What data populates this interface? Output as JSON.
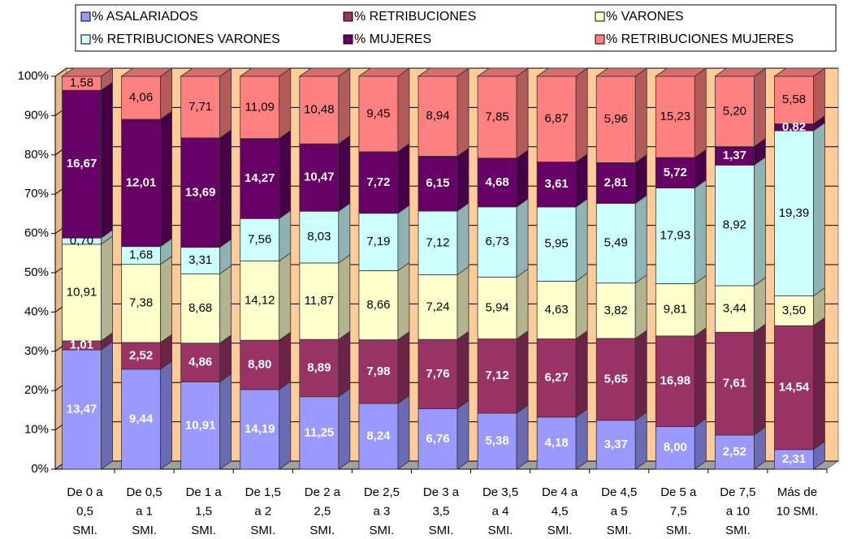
{
  "chart_data": {
    "type": "bar",
    "stacking": "percent",
    "categories": [
      [
        "De 0 a",
        "0,5",
        "SMI."
      ],
      [
        "De 0,5",
        "a 1",
        "SMI."
      ],
      [
        "De 1 a",
        "1,5",
        "SMI."
      ],
      [
        "De 1,5",
        "a 2",
        "SMI."
      ],
      [
        "De 2 a",
        "2,5",
        "SMI."
      ],
      [
        "De 2,5",
        "a 3",
        "SMI."
      ],
      [
        "De 3 a",
        "3,5",
        "SMI."
      ],
      [
        "De 3,5",
        "a 4",
        "SMI."
      ],
      [
        "De 4 a",
        "4,5",
        "SMI."
      ],
      [
        "De 4,5",
        "a 5",
        "SMI."
      ],
      [
        "De 5 a",
        "7,5",
        "SMI."
      ],
      [
        "De 7,5",
        "a 10",
        "SMI."
      ],
      [
        "Más de",
        "10 SMI."
      ]
    ],
    "series": [
      {
        "name": "% ASALARIADOS",
        "color": "#9999ff",
        "values": [
          13.47,
          9.44,
          10.91,
          14.19,
          11.25,
          8.24,
          6.76,
          5.38,
          4.18,
          3.37,
          8.0,
          2.52,
          2.31
        ],
        "value_labels": [
          "13,47",
          "9,44",
          "10,91",
          "14,19",
          "11,25",
          "8,24",
          "6,76",
          "5,38",
          "4,18",
          "3,37",
          "8,00",
          "2,52",
          "2,31"
        ]
      },
      {
        "name": "% RETRIBUCIONES",
        "color": "#993366",
        "values": [
          1.01,
          2.52,
          4.86,
          8.8,
          8.89,
          7.98,
          7.76,
          7.12,
          6.27,
          5.65,
          16.98,
          7.61,
          14.54
        ],
        "value_labels": [
          "1,01",
          "2,52",
          "4,86",
          "8,80",
          "8,89",
          "7,98",
          "7,76",
          "7,12",
          "6,27",
          "5,65",
          "16,98",
          "7,61",
          "14,54"
        ]
      },
      {
        "name": "% VARONES",
        "color": "#ffffcc",
        "values": [
          10.91,
          7.38,
          8.68,
          14.12,
          11.87,
          8.66,
          7.24,
          5.94,
          4.63,
          3.82,
          9.81,
          3.44,
          3.5
        ],
        "value_labels": [
          "10,91",
          "7,38",
          "8,68",
          "14,12",
          "11,87",
          "8,66",
          "7,24",
          "5,94",
          "4,63",
          "3,82",
          "9,81",
          "3,44",
          "3,50"
        ]
      },
      {
        "name": "% RETRIBUCIONES VARONES",
        "color": "#ccffff",
        "values": [
          0.7,
          1.68,
          3.31,
          7.56,
          8.03,
          7.19,
          7.12,
          6.73,
          5.95,
          5.49,
          17.93,
          8.92,
          19.39
        ],
        "value_labels": [
          "0,70",
          "1,68",
          "3,31",
          "7,56",
          "8,03",
          "7,19",
          "7,12",
          "6,73",
          "5,95",
          "5,49",
          "17,93",
          "8,92",
          "19,39"
        ]
      },
      {
        "name": "% MUJERES",
        "color": "#660066",
        "values": [
          16.67,
          12.01,
          13.69,
          14.27,
          10.47,
          7.72,
          6.15,
          4.68,
          3.61,
          2.81,
          5.72,
          1.37,
          0.82
        ],
        "value_labels": [
          "16,67",
          "12,01",
          "13,69",
          "14,27",
          "10,47",
          "7,72",
          "6,15",
          "4,68",
          "3,61",
          "2,81",
          "5,72",
          "1,37",
          "0,82"
        ]
      },
      {
        "name": "% RETRIBUCIONES MUJERES",
        "color": "#ff8080",
        "values": [
          1.58,
          4.06,
          7.71,
          11.09,
          10.48,
          9.45,
          8.94,
          7.85,
          6.87,
          5.96,
          15.23,
          5.2,
          5.58
        ],
        "value_labels": [
          "1,58",
          "4,06",
          "7,71",
          "11,09",
          "10,48",
          "9,45",
          "8,94",
          "7,85",
          "6,87",
          "5,96",
          "15,23",
          "5,20",
          "5,58"
        ]
      }
    ],
    "ylim": [
      0,
      100
    ],
    "yticks": [
      {
        "value": 0,
        "label": "0%"
      },
      {
        "value": 10,
        "label": "10%"
      },
      {
        "value": 20,
        "label": "20%"
      },
      {
        "value": 30,
        "label": "30%"
      },
      {
        "value": 40,
        "label": "40%"
      },
      {
        "value": 50,
        "label": "50%"
      },
      {
        "value": 60,
        "label": "60%"
      },
      {
        "value": 70,
        "label": "70%"
      },
      {
        "value": 80,
        "label": "80%"
      },
      {
        "value": 90,
        "label": "90%"
      },
      {
        "value": 100,
        "label": "100%"
      }
    ],
    "grid": true,
    "legend": "top"
  }
}
